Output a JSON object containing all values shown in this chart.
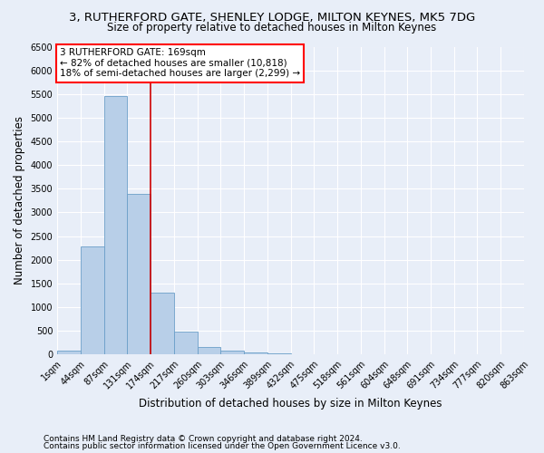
{
  "title": "3, RUTHERFORD GATE, SHENLEY LODGE, MILTON KEYNES, MK5 7DG",
  "subtitle": "Size of property relative to detached houses in Milton Keynes",
  "xlabel": "Distribution of detached houses by size in Milton Keynes",
  "ylabel": "Number of detached properties",
  "footnote1": "Contains HM Land Registry data © Crown copyright and database right 2024.",
  "footnote2": "Contains public sector information licensed under the Open Government Licence v3.0.",
  "annotation_line1": "3 RUTHERFORD GATE: 169sqm",
  "annotation_line2": "← 82% of detached houses are smaller (10,818)",
  "annotation_line3": "18% of semi-detached houses are larger (2,299) →",
  "bar_color": "#b8cfe8",
  "bar_edge_color": "#6b9fc8",
  "red_line_color": "#cc0000",
  "red_line_x": 4.0,
  "ylim": [
    0,
    6500
  ],
  "yticks": [
    0,
    500,
    1000,
    1500,
    2000,
    2500,
    3000,
    3500,
    4000,
    4500,
    5000,
    5500,
    6000,
    6500
  ],
  "bin_labels": [
    "1sqm",
    "44sqm",
    "87sqm",
    "131sqm",
    "174sqm",
    "217sqm",
    "260sqm",
    "303sqm",
    "346sqm",
    "389sqm",
    "432sqm",
    "475sqm",
    "518sqm",
    "561sqm",
    "604sqm",
    "648sqm",
    "691sqm",
    "734sqm",
    "777sqm",
    "820sqm",
    "863sqm"
  ],
  "bar_heights": [
    75,
    2280,
    5450,
    3400,
    1300,
    480,
    160,
    80,
    50,
    30,
    10,
    8,
    3,
    2,
    1,
    1,
    0,
    0,
    0,
    0
  ],
  "background_color": "#e8eef8",
  "plot_bg_color": "#e8eef8",
  "grid_color": "#ffffff",
  "title_fontsize": 9.5,
  "subtitle_fontsize": 8.5,
  "axis_label_fontsize": 8.5,
  "tick_fontsize": 7.0,
  "annotation_fontsize": 7.5,
  "footnote_fontsize": 6.5
}
